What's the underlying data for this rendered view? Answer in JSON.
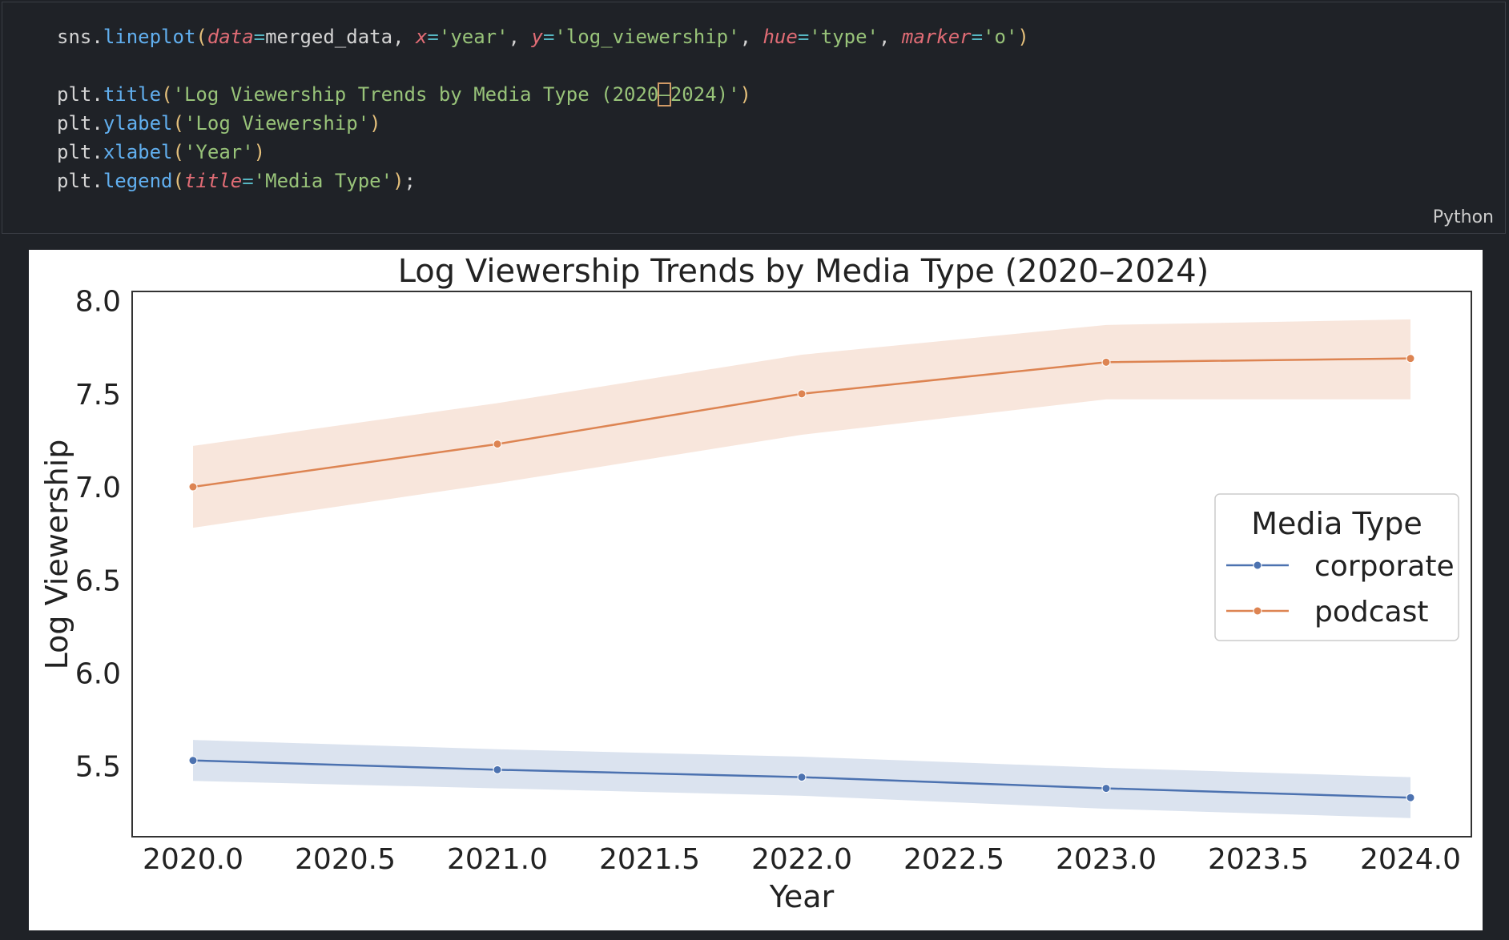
{
  "code": {
    "line1": {
      "obj": "sns",
      "dot": ".",
      "fn": "lineplot",
      "open": "(",
      "k1": "data",
      "eq1": "=",
      "v1": "merged_data",
      "c1": ", ",
      "k2": "x",
      "eq2": "=",
      "v2": "'year'",
      "c2": ", ",
      "k3": "y",
      "eq3": "=",
      "v3": "'log_viewership'",
      "c3": ", ",
      "k4": "hue",
      "eq4": "=",
      "v4": "'type'",
      "c4": ", ",
      "k5": "marker",
      "eq5": "=",
      "v5": "'o'",
      "close": ")"
    },
    "line3": {
      "obj": "plt",
      "dot": ".",
      "fn": "title",
      "open": "(",
      "s_a": "'Log Viewership Trends by Media Type (2020",
      "s_dash": "–",
      "s_b": "2024)'",
      "close": ")"
    },
    "line4": {
      "obj": "plt",
      "dot": ".",
      "fn": "ylabel",
      "open": "(",
      "s": "'Log Viewership'",
      "close": ")"
    },
    "line5": {
      "obj": "plt",
      "dot": ".",
      "fn": "xlabel",
      "open": "(",
      "s": "'Year'",
      "close": ")"
    },
    "line6": {
      "obj": "plt",
      "dot": ".",
      "fn": "legend",
      "open": "(",
      "k": "title",
      "eq": "=",
      "s": "'Media Type'",
      "close": ")",
      "semi": ";"
    }
  },
  "cell": {
    "language": "Python"
  },
  "chart_data": {
    "type": "line",
    "title": "Log Viewership Trends by Media Type (2020–2024)",
    "xlabel": "Year",
    "ylabel": "Log Viewership",
    "x": [
      2020,
      2021,
      2022,
      2023,
      2024
    ],
    "xlim": [
      2019.8,
      2024.2
    ],
    "ylim": [
      5.12,
      8.05
    ],
    "xticks": [
      2020.0,
      2020.5,
      2021.0,
      2021.5,
      2022.0,
      2022.5,
      2023.0,
      2023.5,
      2024.0
    ],
    "xtick_labels": [
      "2020.0",
      "2020.5",
      "2021.0",
      "2021.5",
      "2022.0",
      "2022.5",
      "2023.0",
      "2023.5",
      "2024.0"
    ],
    "yticks": [
      5.5,
      6.0,
      6.5,
      7.0,
      7.5,
      8.0
    ],
    "ytick_labels": [
      "5.5",
      "6.0",
      "6.5",
      "7.0",
      "7.5",
      "8.0"
    ],
    "grid": false,
    "legend": {
      "title": "Media Type",
      "placement": "center-right"
    },
    "series": [
      {
        "name": "corporate",
        "color": "#4c72b0",
        "values": [
          5.53,
          5.48,
          5.44,
          5.38,
          5.33
        ],
        "ci_low": [
          5.42,
          5.38,
          5.34,
          5.27,
          5.22
        ],
        "ci_high": [
          5.64,
          5.59,
          5.55,
          5.49,
          5.44
        ]
      },
      {
        "name": "podcast",
        "color": "#dd8452",
        "values": [
          7.0,
          7.23,
          7.5,
          7.67,
          7.69
        ],
        "ci_low": [
          6.78,
          7.02,
          7.28,
          7.47,
          7.47
        ],
        "ci_high": [
          7.22,
          7.45,
          7.71,
          7.87,
          7.9
        ]
      }
    ]
  }
}
